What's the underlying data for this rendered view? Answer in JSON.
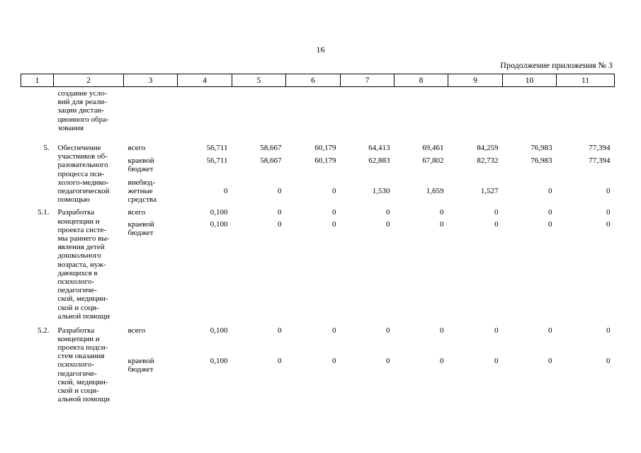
{
  "page_number": "16",
  "continuation": "Продолжение приложения № 3",
  "columns": [
    "1",
    "2",
    "3",
    "4",
    "5",
    "6",
    "7",
    "8",
    "9",
    "10",
    "11"
  ],
  "continued_text": "создание усло-\nвий для реали-\nзации дистан-\nционного обра-\nзования",
  "rows": [
    {
      "idx": "5.",
      "name": "Обеспечение\nучастников об-\nразовательного\nпроцесса пси-\nхолого-медико-\nпедагогической\nпомощью",
      "lines": [
        {
          "src": "всего",
          "values": [
            "56,711",
            "58,667",
            "60,179",
            "64,413",
            "69,461",
            "84,259",
            "76,983",
            "77,394"
          ]
        },
        {
          "src": "краевой\nбюджет",
          "values": [
            "56,711",
            "58,667",
            "60,179",
            "62,883",
            "67,802",
            "82,732",
            "76,983",
            "77,394"
          ]
        },
        {
          "src": "внебюд-\nжетные\nсредства",
          "values": [
            "0",
            "0",
            "0",
            "1,530",
            "1,659",
            "1,527",
            "0",
            "0"
          ]
        }
      ]
    },
    {
      "idx": "5.1.",
      "name": "Разработка\nконцепции и\nпроекта систе-\nмы раннего вы-\nявления детей\nдошкольного\nвозраста, нуж-\nдающихся в\nпсихолого-\nпедагогиче-\nской, медицин-\nской и соци-\nальной помощи",
      "lines": [
        {
          "src": "всего",
          "values": [
            "0,100",
            "0",
            "0",
            "0",
            "0",
            "0",
            "0",
            "0"
          ]
        },
        {
          "src": "краевой\nбюджет",
          "values": [
            "0,100",
            "0",
            "0",
            "0",
            "0",
            "0",
            "0",
            "0"
          ]
        }
      ]
    },
    {
      "idx": "5.2.",
      "name": "Разработка\nконцепции и\nпроекта подси-\nстем оказания\nпсихолого-\nпедагогиче-\nской, медицин-\nской и соци-\nальной помощи",
      "lines": [
        {
          "src": "всего",
          "values": [
            "0,100",
            "0",
            "0",
            "0",
            "0",
            "0",
            "0",
            "0"
          ]
        },
        {
          "src": "краевой\nбюджет",
          "values": [
            "0,100",
            "0",
            "0",
            "0",
            "0",
            "0",
            "0",
            "0"
          ]
        }
      ]
    }
  ]
}
